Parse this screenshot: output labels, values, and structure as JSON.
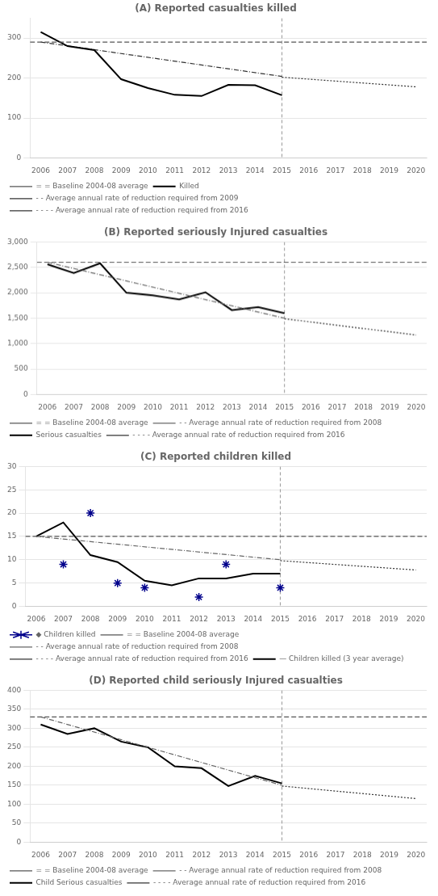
{
  "chart_data": [
    {
      "type": "line",
      "title": "(A) Reported casualties killed",
      "xlim": [
        2005.6,
        2020.4
      ],
      "xticks": [
        2006,
        2007,
        2008,
        2009,
        2010,
        2011,
        2012,
        2013,
        2014,
        2015,
        2016,
        2017,
        2018,
        2019,
        2020
      ],
      "ylim": [
        0,
        350
      ],
      "yticks": [
        0,
        100,
        200,
        300
      ],
      "grid": "y",
      "legend": "bottom",
      "vline": 2015,
      "series": [
        {
          "name": "= = Baseline 2004-08 average",
          "type": "hline",
          "value": 290,
          "color": "#555555",
          "line_style": "dashed"
        },
        {
          "name": "Killed",
          "x": [
            2006,
            2007,
            2008,
            2009,
            2010,
            2011,
            2012,
            2013,
            2014,
            2015
          ],
          "values": [
            315,
            280,
            270,
            197,
            175,
            158,
            155,
            183,
            182,
            157
          ],
          "color": "#000000",
          "line_style": "solid"
        },
        {
          "name": "- - Average annual rate of reduction required from 2009",
          "x": [
            2006,
            2015
          ],
          "values": [
            290,
            204
          ],
          "color": "#333333",
          "line_style": "dashdot"
        },
        {
          "name": "- - - - Average annual rate of reduction required from 2016",
          "x": [
            2015,
            2020
          ],
          "values": [
            202,
            178
          ],
          "color": "#333333",
          "line_style": "dotted"
        }
      ]
    },
    {
      "type": "line",
      "title": "(B) Reported seriously Injured casualties",
      "xlim": [
        2005.6,
        2020.4
      ],
      "xticks": [
        2006,
        2007,
        2008,
        2009,
        2010,
        2011,
        2012,
        2013,
        2014,
        2015,
        2016,
        2017,
        2018,
        2019,
        2020
      ],
      "ylim": [
        0,
        3000
      ],
      "yticks": [
        0,
        500,
        {
          "value": 1000,
          "label": "1,000"
        },
        {
          "value": 1500,
          "label": "1,500"
        },
        {
          "value": 2000,
          "label": "2,000"
        },
        {
          "value": 2500,
          "label": "2,500"
        },
        {
          "value": 3000,
          "label": "3,000"
        }
      ],
      "grid": "y",
      "legend": "bottom",
      "vline": 2015,
      "series": [
        {
          "name": "= = Baseline 2004-08 average",
          "type": "hline",
          "value": 2600,
          "color": "#555555",
          "line_style": "dashed"
        },
        {
          "name": "- - Average annual rate of reduction required from 2008",
          "x": [
            2006,
            2015
          ],
          "values": [
            2600,
            1500
          ],
          "color": "#666666",
          "line_style": "dashdot"
        },
        {
          "name": "Serious casualties",
          "x": [
            2006,
            2007,
            2008,
            2009,
            2010,
            2011,
            2012,
            2013,
            2014,
            2015
          ],
          "values": [
            2560,
            2390,
            2580,
            2000,
            1950,
            1870,
            2010,
            1660,
            1720,
            1600
          ],
          "color": "#000000",
          "line_style": "solid"
        },
        {
          "name": "- - - - Average annual rate of reduction required from 2016",
          "x": [
            2015,
            2020
          ],
          "values": [
            1490,
            1170
          ],
          "color": "#333333",
          "line_style": "dotted"
        }
      ]
    },
    {
      "type": "line",
      "title": "(C) Reported children killed",
      "xlim": [
        2005.6,
        2020.4
      ],
      "xticks": [
        2006,
        2007,
        2008,
        2009,
        2010,
        2011,
        2012,
        2013,
        2014,
        2015,
        2016,
        2017,
        2018,
        2019,
        2020
      ],
      "ylim": [
        0,
        30
      ],
      "yticks": [
        0,
        5,
        10,
        15,
        20,
        25,
        30
      ],
      "grid": "y",
      "legend": "bottom",
      "vline": 2015,
      "series": [
        {
          "name": "= = Baseline 2004-08 average",
          "type": "hline",
          "value": 15,
          "color": "#555555",
          "line_style": "dashed"
        },
        {
          "name": "- - Average annual rate of reduction required from 2008",
          "x": [
            2006,
            2015
          ],
          "values": [
            15,
            10
          ],
          "color": "#666666",
          "line_style": "dashdot"
        },
        {
          "name": "- - - - Average annual rate of reduction required from 2016",
          "x": [
            2015,
            2020
          ],
          "values": [
            9.8,
            7.8
          ],
          "color": "#333333",
          "line_style": "dotted"
        },
        {
          "name": "◆ Children killed",
          "type": "scatter",
          "x": [
            2007,
            2008,
            2009,
            2010,
            2012,
            2013,
            2015
          ],
          "values": [
            9,
            20,
            5,
            4,
            2,
            9,
            4
          ],
          "color": "#00008B",
          "marker": "star"
        },
        {
          "name": "— Children killed (3 year average)",
          "x": [
            2006,
            2007,
            2008,
            2009,
            2010,
            2011,
            2012,
            2013,
            2014,
            2015
          ],
          "values": [
            15,
            18,
            11,
            9.5,
            5.5,
            4.5,
            6,
            6,
            7,
            7
          ],
          "color": "#000000",
          "line_style": "solid"
        }
      ]
    },
    {
      "type": "line",
      "title": "(D) Reported child seriously Injured casualties",
      "xlim": [
        2005.6,
        2020.4
      ],
      "xticks": [
        2006,
        2007,
        2008,
        2009,
        2010,
        2011,
        2012,
        2013,
        2014,
        2015,
        2016,
        2017,
        2018,
        2019,
        2020
      ],
      "ylim": [
        0,
        400
      ],
      "yticks": [
        0,
        50,
        100,
        150,
        200,
        250,
        300,
        350,
        400
      ],
      "grid": "y",
      "legend": "bottom",
      "vline": 2015,
      "series": [
        {
          "name": "= = Baseline 2004-08 average",
          "type": "hline",
          "value": 330,
          "color": "#555555",
          "line_style": "dashed"
        },
        {
          "name": "- - Average annual rate of reduction required from 2008",
          "x": [
            2006,
            2015
          ],
          "values": [
            330,
            150
          ],
          "color": "#666666",
          "line_style": "dashdot"
        },
        {
          "name": "Child Serious casualties",
          "x": [
            2006,
            2007,
            2008,
            2009,
            2010,
            2011,
            2012,
            2013,
            2014,
            2015
          ],
          "values": [
            310,
            285,
            300,
            265,
            250,
            200,
            195,
            148,
            175,
            155
          ],
          "color": "#000000",
          "line_style": "solid"
        },
        {
          "name": "- - - - Average annual rate of reduction required from 2016",
          "x": [
            2015,
            2020
          ],
          "values": [
            148,
            115
          ],
          "color": "#333333",
          "line_style": "dotted"
        }
      ]
    }
  ]
}
